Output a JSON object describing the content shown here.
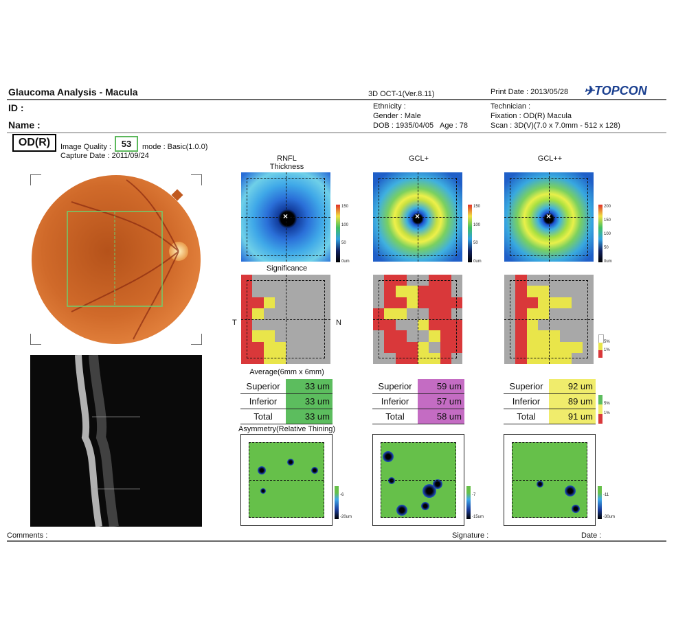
{
  "header": {
    "title": "Glaucoma Analysis - Macula",
    "id_label": "ID :",
    "name_label": "Name :",
    "device": "3D OCT-1(Ver.8.11)",
    "print_date": "Print Date : 2013/05/28",
    "brand": "TOPCON",
    "ethnicity": "Ethnicity :",
    "gender": "Gender : Male",
    "dob": "DOB : 1935/04/05",
    "age": "Age : 78",
    "technician": "Technician :",
    "fixation": "Fixation : OD(R) Macula",
    "scan": "Scan : 3D(V)(7.0 x 7.0mm - 512 x 128)"
  },
  "eye": "OD(R)",
  "image_quality_label": "Image Quality :",
  "image_quality": "53",
  "mode": "mode : Basic(1.0.0)",
  "capture_date": "Capture Date : 2011/09/24",
  "columns": [
    {
      "title": "RNFL",
      "subtitle": "Thickness",
      "scale": [
        "150",
        "100",
        "50",
        "0um"
      ],
      "avg": {
        "Superior": "33 um",
        "Inferior": "33 um",
        "Total": "33 um"
      },
      "avg_color": "#5cbd5e",
      "asym_scale": [
        "-6",
        "-20um"
      ]
    },
    {
      "title": "GCL+",
      "subtitle": "",
      "scale": [
        "150",
        "100",
        "50",
        "0um"
      ],
      "avg": {
        "Superior": "59 um",
        "Inferior": "57 um",
        "Total": "58 um"
      },
      "avg_color": "#c46cc3",
      "asym_scale": [
        "-7",
        "-15um"
      ]
    },
    {
      "title": "GCL++",
      "subtitle": "",
      "scale": [
        "200",
        "150",
        "100",
        "50",
        "0um"
      ],
      "avg": {
        "Superior": "92 um",
        "Inferior": "89 um",
        "Total": "91 um"
      },
      "avg_color": "#f0ec6c",
      "asym_scale": [
        "-11",
        "-30um"
      ]
    }
  ],
  "labels": {
    "significance": "Significance",
    "average": "Average(6mm x 6mm)",
    "asymmetry": "Asymmetry(Relative Thining)",
    "temporal": "T",
    "nasal": "N",
    "row_superior": "Superior",
    "row_inferior": "Inferior",
    "row_total": "Total",
    "legend_5": "5%",
    "legend_1": "1%"
  },
  "footer": {
    "comments": "Comments :",
    "signature": "Signature :",
    "date": "Date :"
  },
  "colors": {
    "red": "#d9383a",
    "yellow": "#e9e54a",
    "green": "#7cc45a",
    "purple": "#c46cc3",
    "gray": "#9a9a9a"
  }
}
